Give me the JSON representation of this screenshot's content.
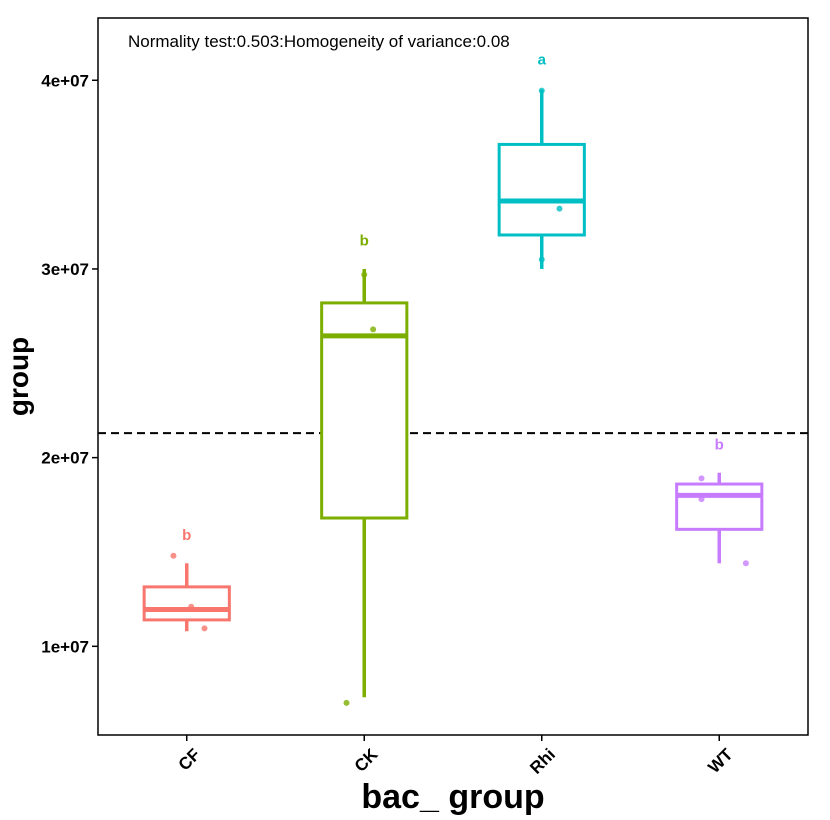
{
  "chart_data": {
    "type": "boxplot",
    "title": "",
    "annotation": "Normality test:0.503:Homogeneity of variance:0.08",
    "xlabel": "bac_ group",
    "ylabel": "group",
    "ylim": [
      5300000,
      43300000
    ],
    "y_ticks": [
      10000000,
      20000000,
      30000000,
      40000000
    ],
    "y_tick_labels": [
      "1e+07",
      "2e+07",
      "3e+07",
      "4e+07"
    ],
    "categories": [
      "CF",
      "CK",
      "Rhi",
      "WT"
    ],
    "reference_line": 21300000,
    "groups": [
      {
        "name": "CF",
        "color": "#F8766D",
        "letter": "b",
        "min": 10800000,
        "q1": 11400000,
        "median": 11950000,
        "q3": 13150000,
        "max": 14400000,
        "letter_y": 15900000,
        "points": [
          {
            "x_offset": -0.15,
            "y": 14800000
          },
          {
            "x_offset": 0.05,
            "y": 12100000
          },
          {
            "x_offset": 0.2,
            "y": 10950000
          }
        ]
      },
      {
        "name": "CK",
        "color": "#7CAE00",
        "letter": "b",
        "min": 7300000,
        "q1": 16800000,
        "median": 26450000,
        "q3": 28200000,
        "max": 30000000,
        "letter_y": 31500000,
        "points": [
          {
            "x_offset": 0.0,
            "y": 29700000
          },
          {
            "x_offset": 0.1,
            "y": 26800000
          },
          {
            "x_offset": -0.2,
            "y": 7000000
          }
        ]
      },
      {
        "name": "Rhi",
        "color": "#00BFC4",
        "letter": "a",
        "min": 30000000,
        "q1": 31800000,
        "median": 33600000,
        "q3": 36600000,
        "max": 39500000,
        "letter_y": 41100000,
        "points": [
          {
            "x_offset": 0.0,
            "y": 39450000
          },
          {
            "x_offset": 0.2,
            "y": 33200000
          },
          {
            "x_offset": 0.0,
            "y": 30500000
          }
        ]
      },
      {
        "name": "WT",
        "color": "#C77CFF",
        "letter": "b",
        "min": 14400000,
        "q1": 16200000,
        "median": 18000000,
        "q3": 18600000,
        "max": 19200000,
        "letter_y": 20700000,
        "points": [
          {
            "x_offset": -0.2,
            "y": 18900000
          },
          {
            "x_offset": -0.2,
            "y": 17800000
          },
          {
            "x_offset": 0.3,
            "y": 14400000
          }
        ]
      }
    ]
  }
}
